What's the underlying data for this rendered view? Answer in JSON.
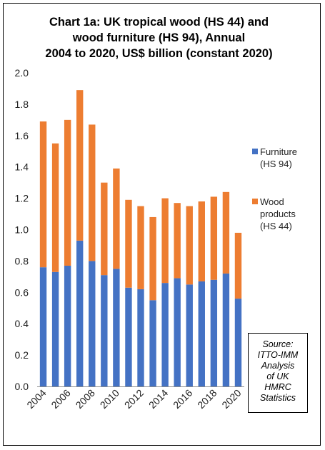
{
  "chart_data": {
    "type": "bar",
    "stacked": true,
    "title_lines": [
      "Chart 1a: UK tropical wood (HS 44) and",
      "wood furniture (HS 94), Annual",
      "2004 to 2020, US$ billion (constant 2020)"
    ],
    "categories": [
      "2004",
      "2005",
      "2006",
      "2007",
      "2008",
      "2009",
      "2010",
      "2011",
      "2012",
      "2013",
      "2014",
      "2015",
      "2016",
      "2017",
      "2018",
      "2019",
      "2020"
    ],
    "x_tick_labels": [
      "2004",
      "2006",
      "2008",
      "2010",
      "2012",
      "2014",
      "2016",
      "2018",
      "2020"
    ],
    "series": [
      {
        "name": "Furniture (HS 94)",
        "legend_lines": [
          "Furniture",
          "(HS 94)"
        ],
        "color": "#4472C4",
        "values": [
          0.76,
          0.73,
          0.77,
          0.93,
          0.8,
          0.71,
          0.75,
          0.63,
          0.62,
          0.55,
          0.66,
          0.69,
          0.65,
          0.67,
          0.68,
          0.72,
          0.56
        ]
      },
      {
        "name": "Wood products (HS 44)",
        "legend_lines": [
          "Wood",
          "products",
          "(HS 44)"
        ],
        "color": "#ED7D31",
        "values": [
          0.93,
          0.82,
          0.93,
          0.96,
          0.87,
          0.59,
          0.64,
          0.56,
          0.53,
          0.53,
          0.54,
          0.48,
          0.5,
          0.51,
          0.53,
          0.52,
          0.42
        ]
      }
    ],
    "ylim": [
      0,
      2.0
    ],
    "y_ticks": [
      "0.0",
      "0.2",
      "0.4",
      "0.6",
      "0.8",
      "1.0",
      "1.2",
      "1.4",
      "1.6",
      "1.8",
      "2.0"
    ],
    "grid": false,
    "legend_position": "right",
    "source_lines": [
      "Source:",
      "ITTO-IMM",
      "Analysis",
      "of UK",
      "HMRC",
      "Statistics"
    ]
  }
}
